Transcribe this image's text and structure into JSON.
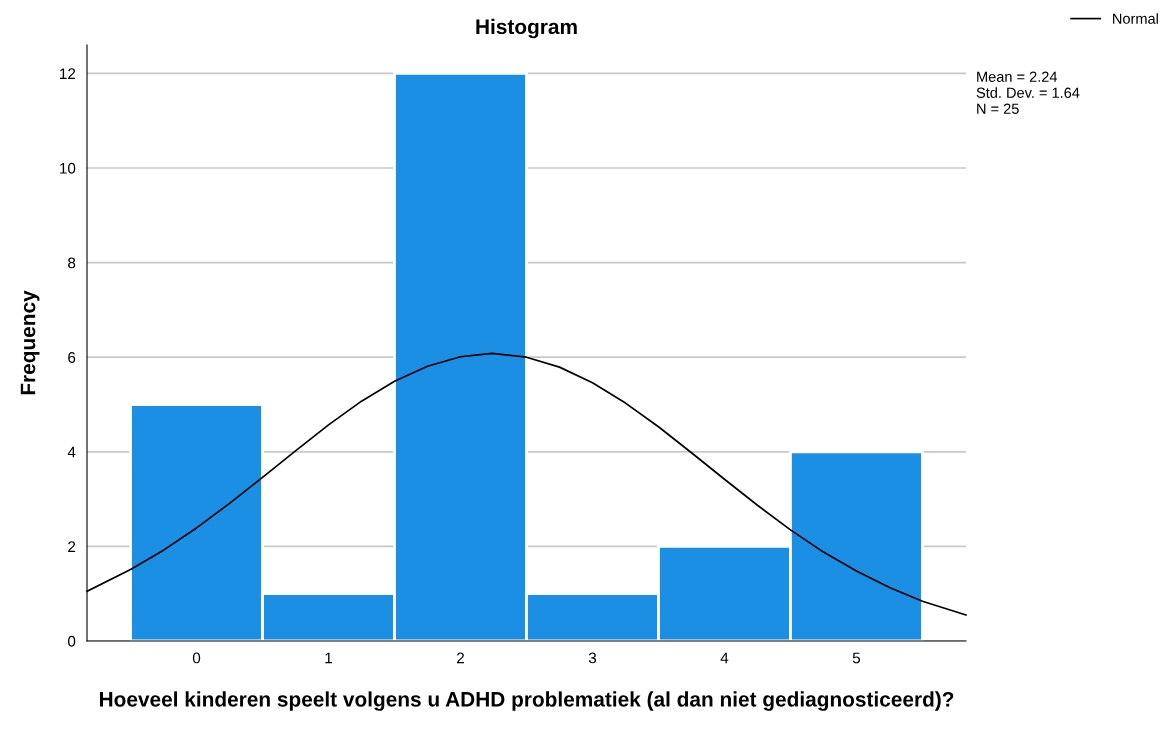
{
  "chart_data": {
    "type": "histogram",
    "title": "Histogram",
    "xlabel": "Hoeveel kinderen speelt volgens u ADHD problematiek (al dan niet gediagnosticeerd)?",
    "ylabel": "Frequency",
    "series": [
      {
        "type": "histogram",
        "bins": [
          -0.5,
          0.5,
          1.5,
          2.5,
          3.5,
          4.5,
          5.5
        ],
        "values": [
          5,
          1,
          12,
          1,
          2,
          4
        ],
        "color": "#1a8fe3"
      },
      {
        "type": "line",
        "name": "Normal",
        "color": "#000000",
        "x": [
          -0.83,
          -0.5,
          -0.25,
          0,
          0.25,
          0.5,
          0.75,
          1,
          1.25,
          1.5,
          1.75,
          2,
          2.24,
          2.5,
          2.75,
          3,
          3.25,
          3.5,
          3.75,
          4,
          4.25,
          4.5,
          4.75,
          5,
          5.25,
          5.5,
          5.83
        ],
        "values": [
          1.05,
          1.51,
          1.92,
          2.39,
          2.91,
          3.46,
          4.02,
          4.57,
          5.07,
          5.49,
          5.81,
          6.01,
          6.08,
          6.0,
          5.79,
          5.46,
          5.03,
          4.53,
          3.98,
          3.42,
          2.87,
          2.35,
          1.88,
          1.48,
          1.13,
          0.84,
          0.55
        ]
      }
    ],
    "xlim": [
      -0.83,
      5.83
    ],
    "xticks": [
      0,
      1,
      2,
      3,
      4,
      5
    ],
    "ylim": [
      0,
      12.6
    ],
    "yticks": [
      0,
      2,
      4,
      6,
      8,
      10,
      12
    ],
    "grid": "y",
    "legend": "top right",
    "marker": "none",
    "line_style": "solid",
    "annotations": [
      "Mean = 2.24",
      "Std. Dev. = 1.64",
      "N = 25"
    ]
  }
}
